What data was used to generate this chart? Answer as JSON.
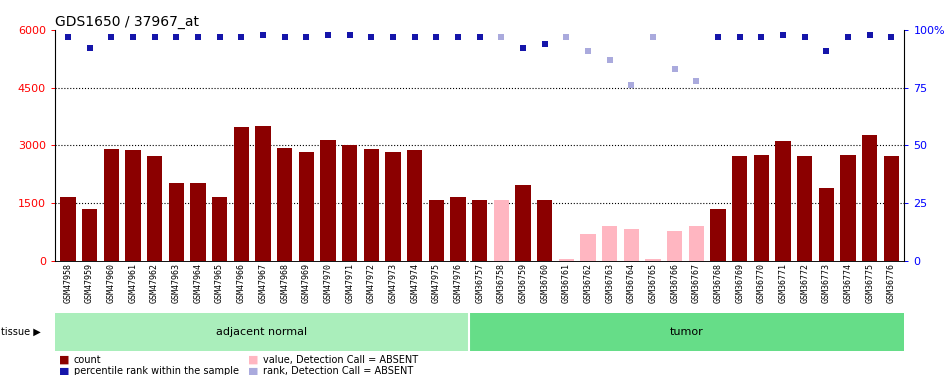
{
  "title": "GDS1650 / 37967_at",
  "samples": [
    "GSM47958",
    "GSM47959",
    "GSM47960",
    "GSM47961",
    "GSM47962",
    "GSM47963",
    "GSM47964",
    "GSM47965",
    "GSM47966",
    "GSM47967",
    "GSM47968",
    "GSM47969",
    "GSM47970",
    "GSM47971",
    "GSM47972",
    "GSM47973",
    "GSM47974",
    "GSM47975",
    "GSM47976",
    "GSM36757",
    "GSM36758",
    "GSM36759",
    "GSM36760",
    "GSM36761",
    "GSM36762",
    "GSM36763",
    "GSM36764",
    "GSM36765",
    "GSM36766",
    "GSM36767",
    "GSM36768",
    "GSM36769",
    "GSM36770",
    "GSM36771",
    "GSM36772",
    "GSM36773",
    "GSM36774",
    "GSM36775",
    "GSM36776"
  ],
  "counts": [
    1650,
    1350,
    2900,
    2870,
    2720,
    2030,
    2020,
    1650,
    3480,
    3490,
    2920,
    2820,
    3130,
    3020,
    2900,
    2820,
    2880,
    1590,
    1650,
    1570,
    1580,
    1980,
    1590,
    30,
    700,
    900,
    830,
    30,
    780,
    900,
    1340,
    2730,
    2760,
    3100,
    2720,
    1900,
    2760,
    3280,
    2730
  ],
  "absent": [
    false,
    false,
    false,
    false,
    false,
    false,
    false,
    false,
    false,
    false,
    false,
    false,
    false,
    false,
    false,
    false,
    false,
    false,
    false,
    false,
    true,
    false,
    false,
    true,
    true,
    true,
    true,
    true,
    true,
    true,
    false,
    false,
    false,
    false,
    false,
    false,
    false,
    false,
    false
  ],
  "percentile_ranks": [
    97,
    92,
    97,
    97,
    97,
    97,
    97,
    97,
    97,
    98,
    97,
    97,
    98,
    98,
    97,
    97,
    97,
    97,
    97,
    97,
    97,
    92,
    94,
    97,
    91,
    87,
    76,
    97,
    83,
    78,
    97,
    97,
    97,
    98,
    97,
    91,
    97,
    98,
    97
  ],
  "absent_rank": [
    false,
    false,
    false,
    false,
    false,
    false,
    false,
    false,
    false,
    false,
    false,
    false,
    false,
    false,
    false,
    false,
    false,
    false,
    false,
    false,
    true,
    false,
    false,
    true,
    true,
    true,
    true,
    true,
    true,
    true,
    false,
    false,
    false,
    false,
    false,
    false,
    false,
    false,
    false
  ],
  "ylim_left": [
    0,
    6000
  ],
  "ylim_right": [
    0,
    100
  ],
  "yticks_left": [
    0,
    1500,
    3000,
    4500,
    6000
  ],
  "yticks_right": [
    0,
    25,
    50,
    75,
    100
  ],
  "bar_color_present": "#8B0000",
  "bar_color_absent": "#FFB6C1",
  "dot_color_present": "#1515AA",
  "dot_color_absent": "#AAAADD",
  "background_color": "#ffffff",
  "title_fontsize": 10,
  "tick_label_fontsize": 6.0,
  "n_adjacent": 19,
  "n_total": 39,
  "adj_color": "#AAEEBB",
  "tumor_color": "#66DD88",
  "xtick_bg": "#D8D8D8"
}
